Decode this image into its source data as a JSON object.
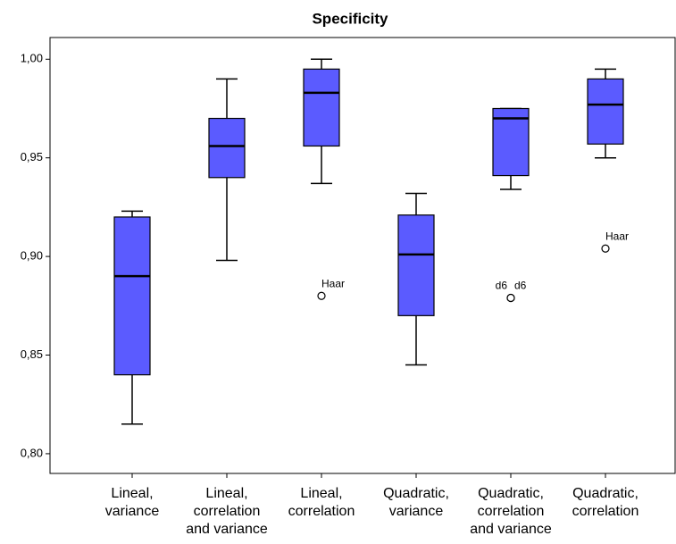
{
  "chart_data": {
    "type": "box",
    "title": "Specificity",
    "categories": [
      [
        "Lineal,",
        "variance"
      ],
      [
        "Lineal,",
        "correlation",
        "and variance"
      ],
      [
        "Lineal,",
        "correlation"
      ],
      [
        "Quadratic,",
        "variance"
      ],
      [
        "Quadratic,",
        "correlation",
        "and variance"
      ],
      [
        "Quadratic,",
        "correlation"
      ]
    ],
    "color": "#5b5bff",
    "boxes": [
      {
        "whisker_low": 0.815,
        "q1": 0.84,
        "median": 0.89,
        "q3": 0.92,
        "whisker_high": 0.923,
        "outliers": []
      },
      {
        "whisker_low": 0.898,
        "q1": 0.94,
        "median": 0.956,
        "q3": 0.97,
        "whisker_high": 0.99,
        "outliers": []
      },
      {
        "whisker_low": 0.937,
        "q1": 0.956,
        "median": 0.983,
        "q3": 0.995,
        "whisker_high": 1.0,
        "outliers": [
          {
            "value": 0.88,
            "label": "Haar"
          }
        ]
      },
      {
        "whisker_low": 0.845,
        "q1": 0.87,
        "median": 0.901,
        "q3": 0.921,
        "whisker_high": 0.932,
        "outliers": []
      },
      {
        "whisker_low": 0.934,
        "q1": 0.941,
        "median": 0.97,
        "q3": 0.975,
        "whisker_high": 0.975,
        "outliers": [
          {
            "value": 0.879,
            "label": "d6"
          },
          {
            "value": 0.879,
            "label": "d6"
          }
        ]
      },
      {
        "whisker_low": 0.95,
        "q1": 0.957,
        "median": 0.977,
        "q3": 0.99,
        "whisker_high": 0.995,
        "outliers": [
          {
            "value": 0.904,
            "label": "Haar"
          }
        ]
      }
    ],
    "ylim": [
      0.79,
      1.011
    ],
    "yticks": [
      {
        "value": 0.8,
        "label": "0,80"
      },
      {
        "value": 0.85,
        "label": "0,85"
      },
      {
        "value": 0.9,
        "label": "0,90"
      },
      {
        "value": 0.95,
        "label": "0,95"
      },
      {
        "value": 1.0,
        "label": "1,00"
      }
    ]
  }
}
